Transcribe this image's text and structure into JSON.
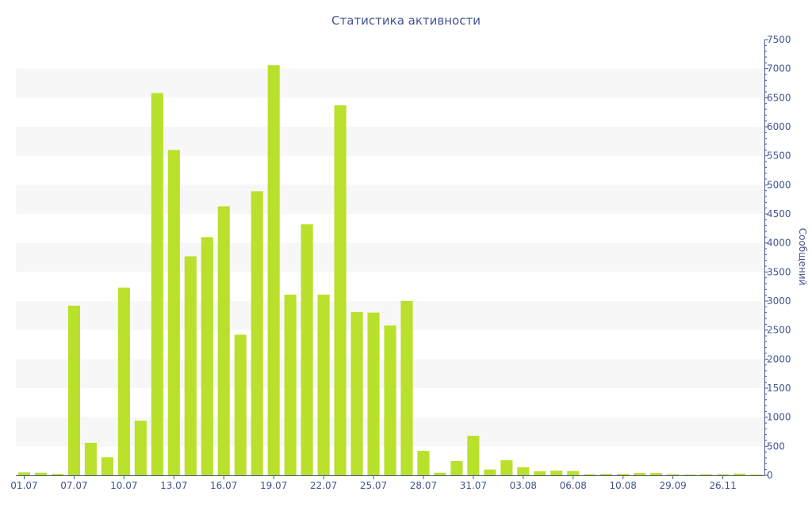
{
  "chart_data": {
    "type": "bar",
    "title": "Статистика активности",
    "ylabel": "Сообщений",
    "xlabel": "",
    "y_axis_position": "right",
    "ylim": [
      0,
      7500
    ],
    "y_ticks": [
      0,
      500,
      1000,
      1500,
      2000,
      2500,
      3000,
      3500,
      4000,
      4500,
      5000,
      5500,
      6000,
      6500,
      7000,
      7500
    ],
    "bar_color": "#b9e02b",
    "band_color": "#f7f7f7",
    "axis_color": "#44558f",
    "values": [
      50,
      45,
      25,
      2920,
      560,
      310,
      3230,
      940,
      6580,
      5600,
      3770,
      4100,
      4630,
      2420,
      4890,
      7060,
      3110,
      4320,
      3110,
      6370,
      2810,
      2800,
      2580,
      3000,
      420,
      45,
      245,
      680,
      100,
      260,
      140,
      70,
      80,
      75,
      20,
      25,
      25,
      40,
      40,
      20,
      15,
      20,
      20,
      30,
      15
    ],
    "tick_labels": [
      {
        "index": 0,
        "label": "01.07"
      },
      {
        "index": 3,
        "label": "07.07"
      },
      {
        "index": 6,
        "label": "10.07"
      },
      {
        "index": 9,
        "label": "13.07"
      },
      {
        "index": 12,
        "label": "16.07"
      },
      {
        "index": 15,
        "label": "19.07"
      },
      {
        "index": 18,
        "label": "22.07"
      },
      {
        "index": 21,
        "label": "25.07"
      },
      {
        "index": 24,
        "label": "28.07"
      },
      {
        "index": 27,
        "label": "31.07"
      },
      {
        "index": 30,
        "label": "03.08"
      },
      {
        "index": 33,
        "label": "06.08"
      },
      {
        "index": 36,
        "label": "10.08"
      },
      {
        "index": 39,
        "label": "29.09"
      },
      {
        "index": 42,
        "label": "26.11"
      }
    ]
  }
}
